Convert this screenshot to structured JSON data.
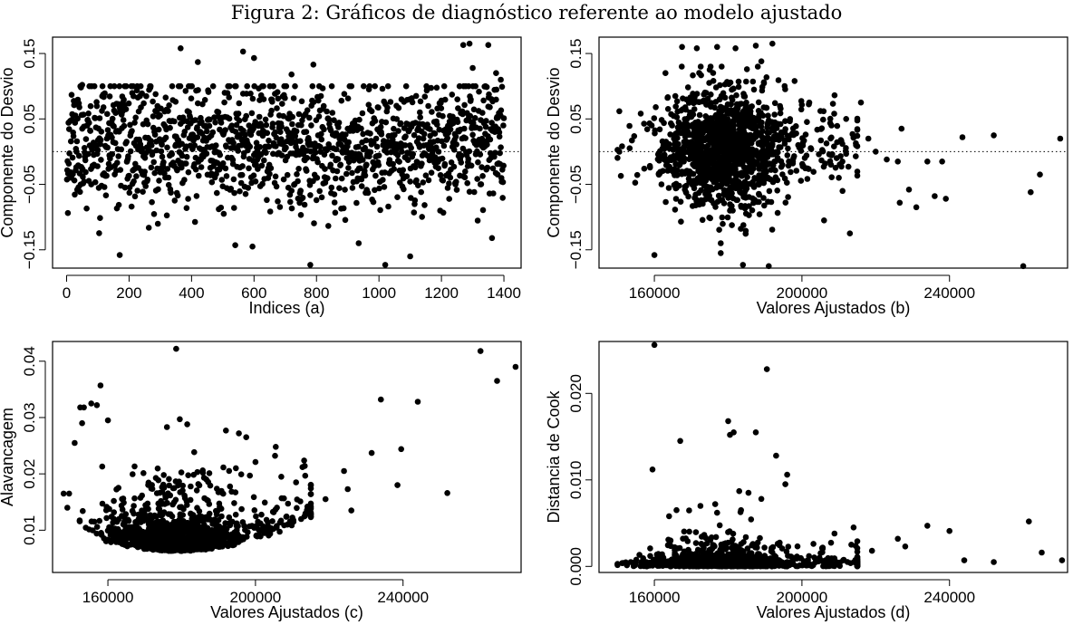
{
  "figure_title": "Figura 2: Gráficos de diagnóstico referente ao modelo ajustado",
  "chart_data": [
    {
      "type": "scatter",
      "title": "",
      "xlabel": "Indices (a)",
      "ylabel": "Componente do Desvio",
      "xlim": [
        -45,
        1455
      ],
      "ylim": [
        -0.178,
        0.175
      ],
      "xticks": [
        0,
        200,
        400,
        600,
        800,
        1000,
        1200,
        1400
      ],
      "xtick_labels": [
        "0",
        "200",
        "400",
        "600",
        "800",
        "1000",
        "1200",
        "1400"
      ],
      "yticks": [
        -0.15,
        -0.05,
        0.05,
        0.15
      ],
      "ytick_labels": [
        "−0.15",
        "−0.05",
        "0.05",
        "0.15"
      ],
      "reference_line": {
        "y": 0,
        "style": "dotted"
      },
      "point_color": "#000000",
      "generator": {
        "kind": "index",
        "n": 1400,
        "seed": 11
      },
      "x": [
        1270,
        1290,
        1350,
        365,
        420,
        565,
        600,
        720,
        790,
        1300,
        1375,
        780,
        1020,
        1100,
        540,
        170,
        935,
        1390,
        50
      ],
      "y": [
        0.163,
        0.165,
        0.163,
        0.158,
        0.137,
        0.153,
        0.143,
        0.118,
        0.133,
        0.128,
        0.12,
        -0.173,
        -0.173,
        -0.16,
        -0.143,
        -0.158,
        -0.14,
        0.11,
        0.102
      ]
    },
    {
      "type": "scatter",
      "title": "",
      "xlabel": "Valores Ajustados (b)",
      "ylabel": "Componente do Desvio",
      "xlim": [
        145000,
        272000
      ],
      "ylim": [
        -0.178,
        0.175
      ],
      "xticks": [
        160000,
        200000,
        240000
      ],
      "xtick_labels": [
        "160000",
        "200000",
        "240000"
      ],
      "yticks": [
        -0.15,
        -0.05,
        0.05,
        0.15
      ],
      "ytick_labels": [
        "−0.15",
        "−0.05",
        "0.05",
        "0.15"
      ],
      "reference_line": {
        "y": 0,
        "style": "dotted"
      },
      "point_color": "#000000",
      "generator": {
        "kind": "fitted",
        "n": 1350,
        "seed": 29
      },
      "x": [
        167500,
        171500,
        177000,
        182000,
        187500,
        192000,
        189000,
        175000,
        163000,
        198000,
        202000,
        205000,
        208000,
        212000,
        216000,
        220000,
        223000,
        226000,
        227000,
        229000,
        231000,
        234000,
        236000,
        238000,
        239000,
        226500,
        243500,
        252000,
        262000,
        264500,
        270000,
        260000,
        218000,
        213000,
        211000,
        210000,
        206000,
        199000,
        160000,
        178000,
        184000,
        191000
      ],
      "y": [
        0.16,
        0.158,
        0.16,
        0.158,
        0.162,
        0.165,
        0.138,
        0.125,
        0.12,
        0.108,
        0.075,
        0.062,
        0.04,
        0.05,
        0.075,
        0.0,
        -0.012,
        -0.015,
        0.035,
        -0.058,
        -0.085,
        -0.015,
        -0.068,
        -0.015,
        -0.072,
        -0.078,
        0.022,
        0.025,
        -0.062,
        -0.035,
        0.02,
        -0.175,
        0.02,
        -0.125,
        -0.06,
        -0.04,
        -0.105,
        0.01,
        -0.158,
        -0.155,
        -0.173,
        -0.175
      ]
    },
    {
      "type": "scatter",
      "title": "",
      "xlabel": "Valores Ajustados (c)",
      "ylabel": "Alavancagem",
      "xlim": [
        145000,
        272000
      ],
      "ylim": [
        0.0025,
        0.0435
      ],
      "xticks": [
        160000,
        200000,
        240000
      ],
      "xtick_labels": [
        "160000",
        "200000",
        "240000"
      ],
      "yticks": [
        0.01,
        0.02,
        0.03,
        0.04
      ],
      "ytick_labels": [
        "0.01",
        "0.02",
        "0.03",
        "0.04"
      ],
      "point_color": "#000000",
      "generator": {
        "kind": "leverage",
        "n": 1350,
        "seed": 47
      },
      "x": [
        178500,
        261000,
        270500,
        265500,
        234000,
        244000,
        231500,
        239500,
        238500,
        252000,
        224000,
        225000,
        226000,
        219000,
        211000,
        207000,
        205500,
        200000,
        197500,
        195500,
        192000,
        179500,
        181500,
        176000,
        158000,
        155500,
        153500,
        152500,
        157000,
        160000,
        153000,
        151000,
        149500,
        148000,
        149000
      ],
      "y": [
        0.0422,
        0.0418,
        0.039,
        0.0365,
        0.0332,
        0.0328,
        0.0237,
        0.0244,
        0.018,
        0.0166,
        0.0205,
        0.0173,
        0.0135,
        0.0155,
        0.0185,
        0.0195,
        0.0248,
        0.0221,
        0.0265,
        0.0272,
        0.0277,
        0.0297,
        0.0288,
        0.0283,
        0.0357,
        0.0325,
        0.0318,
        0.0318,
        0.0322,
        0.0295,
        0.029,
        0.0255,
        0.0165,
        0.0165,
        0.014
      ]
    },
    {
      "type": "scatter",
      "title": "",
      "xlabel": "Valores Ajustados (d)",
      "ylabel": "Distancia de Cook",
      "xlim": [
        145000,
        272000
      ],
      "ylim": [
        -0.0007,
        0.026
      ],
      "xticks": [
        160000,
        200000,
        240000
      ],
      "xtick_labels": [
        "160000",
        "200000",
        "240000"
      ],
      "yticks": [
        0.0,
        0.01,
        0.02
      ],
      "ytick_labels": [
        "0.000",
        "0.010",
        "0.020"
      ],
      "point_color": "#000000",
      "generator": {
        "kind": "cook",
        "n": 1350,
        "seed": 83
      },
      "x": [
        160000,
        190500,
        180000,
        181500,
        180500,
        167000,
        187500,
        159500,
        193000,
        195500,
        196000,
        185500,
        183000,
        189000,
        176500,
        172500,
        166000,
        164000,
        177000,
        183500,
        261500,
        234000,
        240000,
        265000,
        270500,
        252000,
        244000,
        214000,
        228000,
        226000,
        219000
      ],
      "y": [
        0.0256,
        0.0228,
        0.0168,
        0.0155,
        0.0152,
        0.0145,
        0.0155,
        0.0112,
        0.0128,
        0.0095,
        0.0106,
        0.0085,
        0.0087,
        0.0078,
        0.0072,
        0.007,
        0.0065,
        0.0058,
        0.0062,
        0.0065,
        0.0052,
        0.0047,
        0.0041,
        0.0016,
        0.0007,
        0.0005,
        0.0007,
        0.0045,
        0.0023,
        0.0032,
        0.0018
      ]
    }
  ]
}
